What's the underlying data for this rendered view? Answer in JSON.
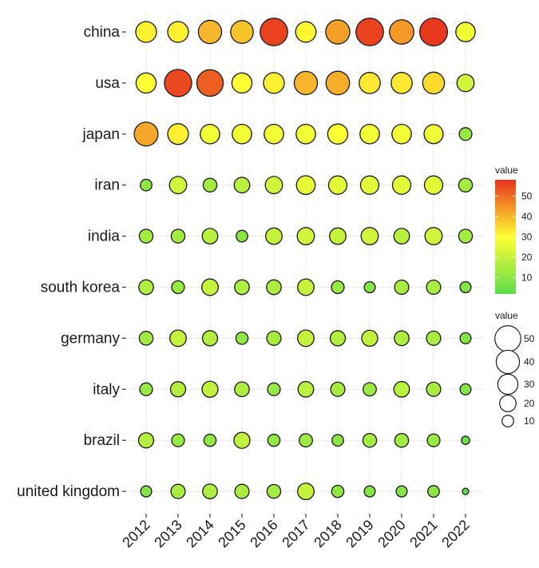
{
  "chart_data": {
    "type": "bubble-heatmap",
    "x_categories": [
      "2012",
      "2013",
      "2014",
      "2015",
      "2016",
      "2017",
      "2018",
      "2019",
      "2020",
      "2021",
      "2022"
    ],
    "y_categories": [
      "china",
      "usa",
      "japan",
      "iran",
      "india",
      "south korea",
      "germany",
      "italy",
      "brazil",
      "united kingdom"
    ],
    "values": [
      [
        32,
        32,
        40,
        38,
        56,
        31,
        43,
        56,
        44,
        57,
        28
      ],
      [
        30,
        55,
        52,
        30,
        32,
        40,
        41,
        33,
        33,
        35,
        22
      ],
      [
        42,
        32,
        28,
        28,
        28,
        28,
        30,
        28,
        28,
        27,
        12
      ],
      [
        10,
        22,
        14,
        18,
        22,
        26,
        25,
        25,
        25,
        25,
        14
      ],
      [
        14,
        14,
        18,
        10,
        20,
        22,
        20,
        22,
        18,
        22,
        14
      ],
      [
        16,
        12,
        20,
        16,
        16,
        20,
        12,
        9,
        15,
        15,
        9
      ],
      [
        14,
        20,
        17,
        11,
        15,
        20,
        17,
        19,
        16,
        15,
        9
      ],
      [
        12,
        17,
        19,
        16,
        12,
        18,
        15,
        13,
        18,
        15,
        9
      ],
      [
        17,
        12,
        11,
        19,
        11,
        13,
        10,
        14,
        14,
        12,
        5
      ],
      [
        9,
        15,
        16,
        15,
        14,
        20,
        11,
        9,
        9,
        10,
        3
      ]
    ],
    "color_legend": {
      "title": "value",
      "ticks": [
        10,
        20,
        30,
        40,
        50
      ],
      "min": 2,
      "max": 58,
      "low_color": "#5ddc4c",
      "mid_color": "#ffff33",
      "high_color": "#e8321c",
      "position": "right"
    },
    "size_legend": {
      "title": "value",
      "ticks": [
        50,
        40,
        30,
        20,
        10
      ],
      "position": "right"
    },
    "grid": true
  }
}
